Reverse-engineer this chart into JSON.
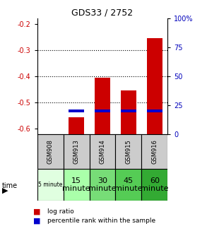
{
  "title": "GDS33 / 2752",
  "samples": [
    "GSM908",
    "GSM913",
    "GSM914",
    "GSM915",
    "GSM916"
  ],
  "time_labels": [
    "5 minute",
    "15\nminute",
    "30\nminute",
    "45\nminute",
    "60\nminute"
  ],
  "log_ratios": [
    null,
    -0.555,
    -0.405,
    -0.455,
    -0.255
  ],
  "percentile_ranks_pct": [
    null,
    20,
    20,
    20,
    20
  ],
  "ylim_left": [
    -0.62,
    -0.18
  ],
  "yticks_left": [
    -0.6,
    -0.5,
    -0.4,
    -0.3,
    -0.2
  ],
  "yticks_right": [
    0,
    25,
    50,
    75,
    100
  ],
  "ylabel_left_color": "#cc0000",
  "ylabel_right_color": "#0000bb",
  "bar_color": "#cc0000",
  "pct_color": "#0000cc",
  "sample_bg_color": "#cccccc",
  "time_bg_colors": [
    "#e0ffe0",
    "#aaffaa",
    "#77dd77",
    "#55cc55",
    "#33aa33"
  ],
  "bar_width": 0.6
}
